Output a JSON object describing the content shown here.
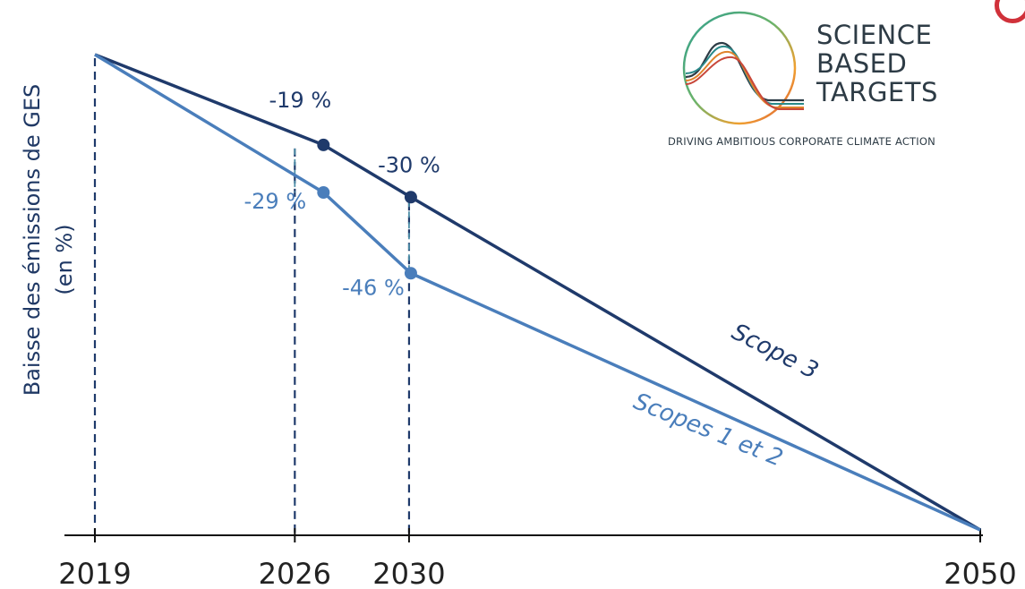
{
  "chart_data": {
    "type": "line",
    "ylabel_line1": "Baisse des émissions de GES",
    "ylabel_line2": "(en %)",
    "x": [
      2019,
      2026,
      2030,
      2050
    ],
    "x_ticks": [
      "2019",
      "2026",
      "2030",
      "2050"
    ],
    "xlim": [
      2019,
      2050
    ],
    "ylim": [
      -100,
      0
    ],
    "grid": false,
    "series": [
      {
        "name": "Scope 3",
        "color": "#1f3a6b",
        "points": [
          {
            "x": 2019,
            "y": 0
          },
          {
            "x": 2026,
            "y": -19,
            "label": "-19 %"
          },
          {
            "x": 2030,
            "y": -30,
            "label": "-30 %"
          },
          {
            "x": 2050,
            "y": -100
          }
        ]
      },
      {
        "name": "Scopes 1 et 2",
        "color": "#4a7ebb",
        "points": [
          {
            "x": 2019,
            "y": 0
          },
          {
            "x": 2026,
            "y": -29,
            "label": "-29 %"
          },
          {
            "x": 2030,
            "y": -46,
            "label": "-46 %"
          },
          {
            "x": 2050,
            "y": -100
          }
        ]
      }
    ]
  },
  "logo": {
    "line1": "SCIENCE",
    "line2": "BASED",
    "line3": "TARGETS",
    "tagline": "DRIVING AMBITIOUS CORPORATE CLIMATE ACTION"
  }
}
